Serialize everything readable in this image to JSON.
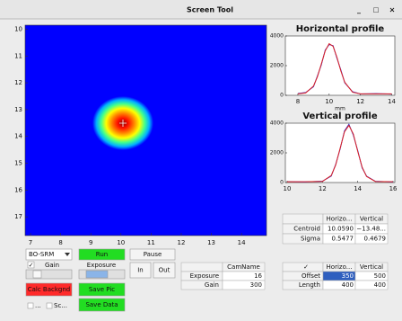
{
  "window": {
    "title": "Screen Tool",
    "controls": [
      "_",
      "□",
      "×"
    ]
  },
  "image": {
    "xlim": [
      6.82,
      14.83
    ],
    "ylim": [
      9.85,
      17.7
    ],
    "xticks": [
      7,
      8,
      9,
      10,
      11,
      12,
      13,
      14
    ],
    "yticks": [
      10,
      11,
      12,
      13,
      14,
      15,
      16,
      17
    ]
  },
  "horizontal_profile": {
    "type": "line",
    "title": "Horizontal profile",
    "xlabel": "mm",
    "x": [
      8,
      8.5,
      9,
      9.25,
      9.5,
      9.75,
      10,
      10.25,
      10.5,
      10.75,
      11,
      11.5,
      12,
      13,
      14
    ],
    "series": [
      {
        "color": "#2a2ad0",
        "values": [
          120,
          190,
          580,
          1300,
          2050,
          3050,
          3420,
          3350,
          2500,
          1700,
          840,
          240,
          90,
          110,
          80
        ]
      },
      {
        "color": "#e02020",
        "values": [
          100,
          158,
          624,
          1243,
          2115,
          2997,
          3480,
          3303,
          2561,
          1637,
          880,
          206,
          100,
          100,
          100
        ]
      }
    ],
    "xlim": [
      7.2,
      14.2
    ],
    "ylim": [
      0,
      4000
    ],
    "xticks": [
      8,
      10,
      12,
      14
    ],
    "yticks": [
      0,
      2000,
      4000
    ]
  },
  "vertical_profile": {
    "type": "line",
    "title": "Vertical profile",
    "x": [
      10,
      11,
      12,
      12.5,
      12.75,
      13,
      13.25,
      13.5,
      13.75,
      14,
      14.25,
      14.5,
      15,
      16
    ],
    "series": [
      {
        "color": "#2a2ad0",
        "values": [
          60,
          40,
          90,
          440,
          1220,
          2250,
          3480,
          3920,
          3200,
          2150,
          990,
          430,
          80,
          40
        ]
      },
      {
        "color": "#e02020",
        "values": [
          50,
          50,
          75,
          476,
          1175,
          2296,
          3417,
          3850,
          3269,
          2098,
          1031,
          405,
          69,
          50
        ]
      }
    ],
    "xlim": [
      9.9,
      16.1
    ],
    "ylim": [
      0,
      4000
    ],
    "xticks": [
      10,
      12,
      14,
      16
    ],
    "yticks": [
      0,
      2000,
      4000
    ]
  },
  "controls": {
    "camera": "BO-SRM",
    "gain_check": "✓",
    "gain": "Gain",
    "exposure": "Exposure",
    "run": "Run",
    "pause": "Pause",
    "in": "In",
    "out": "Out",
    "calc_backgnd": "Calc Backgnd",
    "save_pic": "Save Pic",
    "save_data": "Save Data",
    "check1": "...",
    "check2": "Sc..."
  },
  "cam_table": {
    "header": "CamName",
    "rows": [
      [
        "Exposure",
        16
      ],
      [
        "Gain",
        300
      ]
    ]
  },
  "stats_table": {
    "columns": [
      "Horizo...",
      "Vertical"
    ],
    "rows": [
      {
        "label": "Centroid",
        "values": [
          "10.0590",
          "−13.48..."
        ]
      },
      {
        "label": "Sigma",
        "values": [
          "0.5477",
          "0.4679"
        ]
      }
    ]
  },
  "roi_table": {
    "check": "✓",
    "columns": [
      "Horizo...",
      "Vertical"
    ],
    "rows": [
      {
        "label": "Offset",
        "values": [
          350,
          500
        ]
      },
      {
        "label": "Length",
        "values": [
          400,
          400
        ]
      }
    ]
  }
}
